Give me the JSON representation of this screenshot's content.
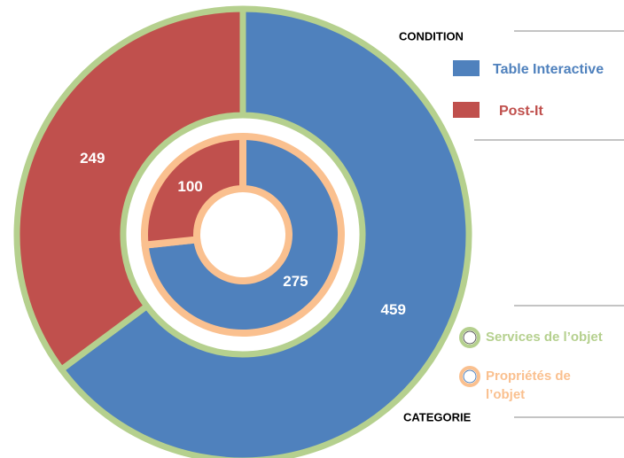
{
  "chart_data": {
    "type": "nested-donut",
    "legend_title": "CONDITION",
    "categories": [
      "Table Interactive",
      "Post-It"
    ],
    "colors": [
      "#4f81bd",
      "#c0504d"
    ],
    "ring_legend_title": "CATEGORIE",
    "rings": [
      {
        "name": "Services de l’objet",
        "border": "#b5d08e",
        "values": [
          459,
          249
        ]
      },
      {
        "name": "Propriétés de l’objet",
        "border": "#fac08f",
        "values": [
          275,
          100
        ]
      }
    ]
  }
}
